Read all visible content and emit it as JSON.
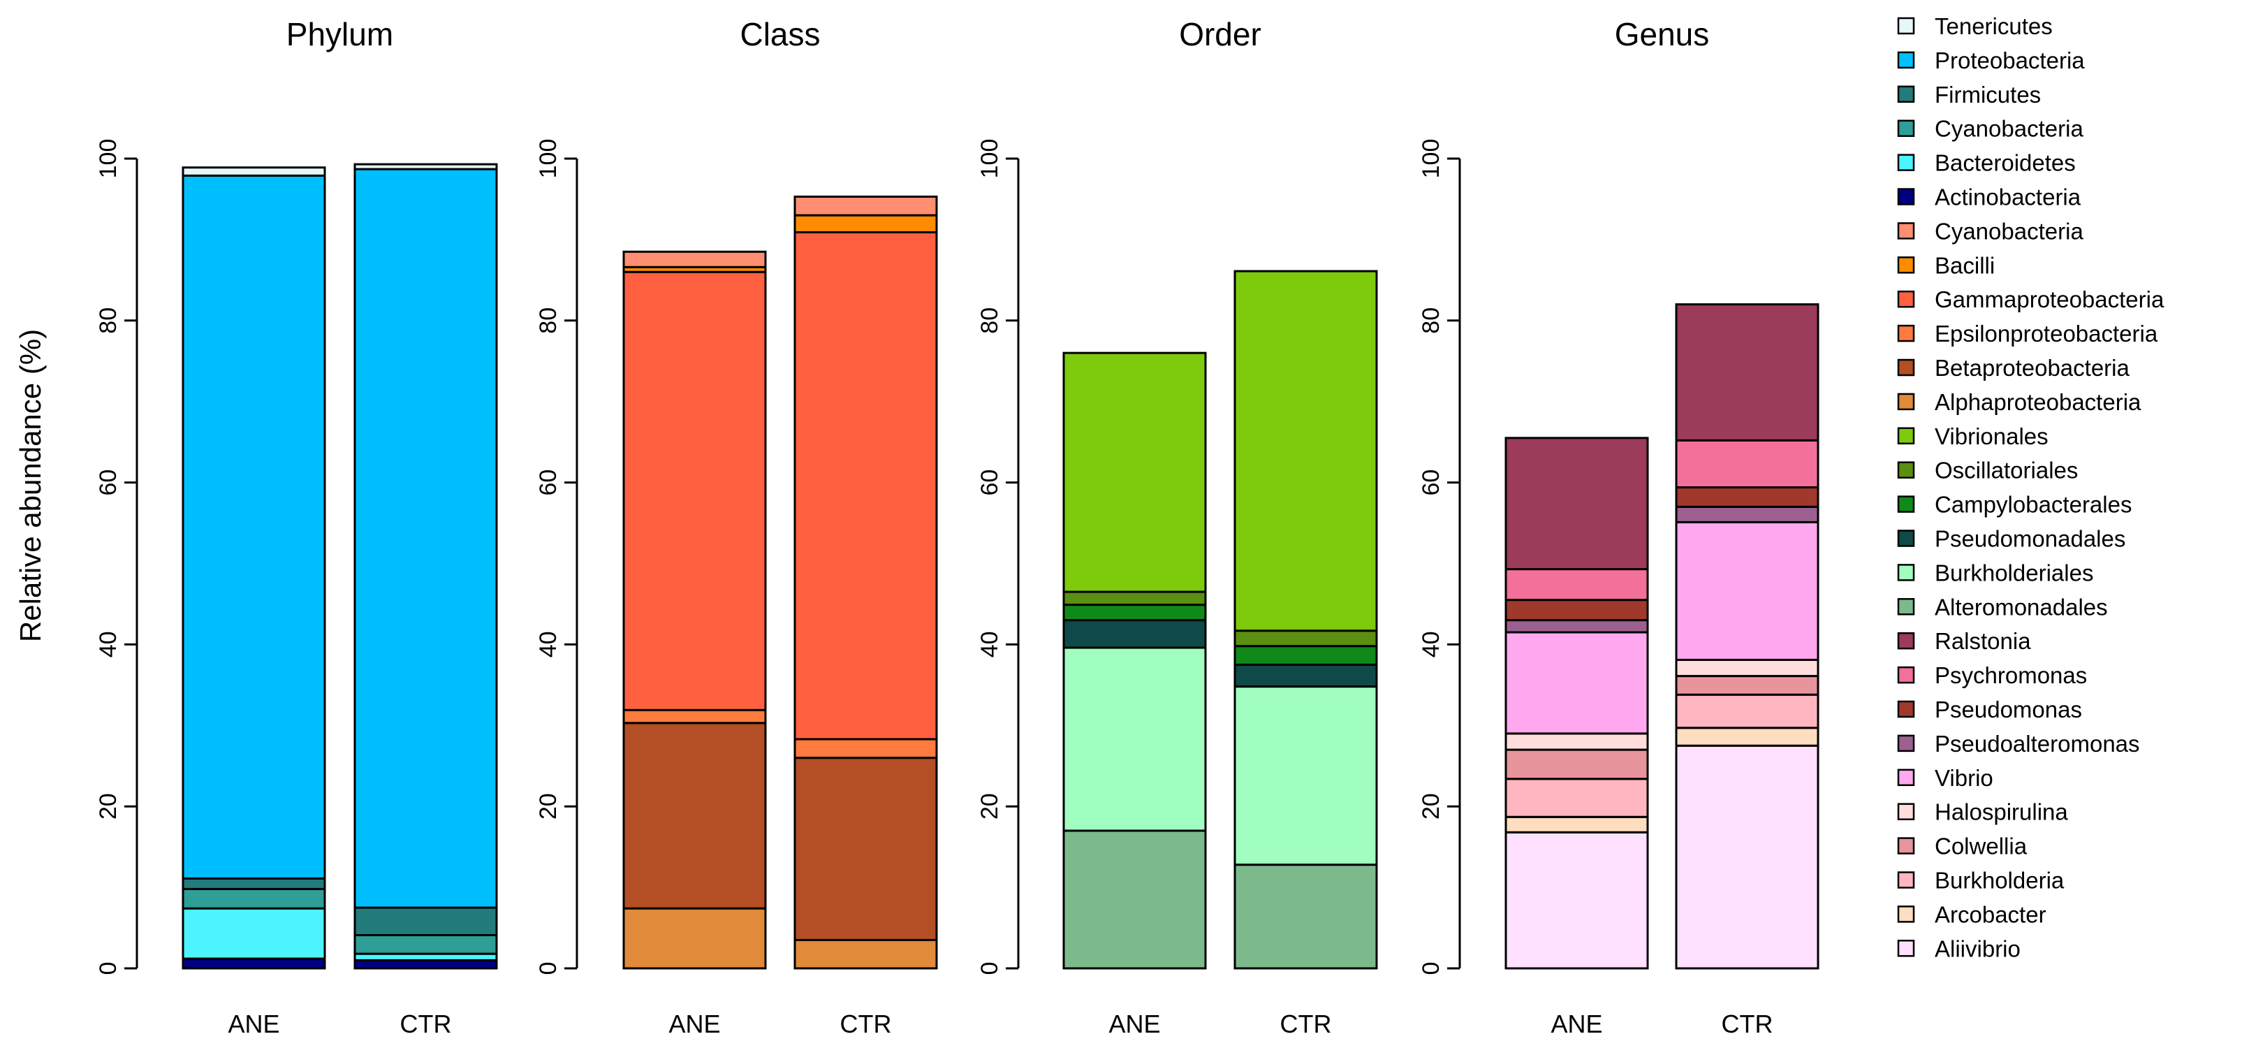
{
  "chart_data": [
    {
      "type": "bar",
      "stacked": true,
      "title": "Phylum",
      "xlabel": "",
      "ylabel": "Relative abundance (%)",
      "ylim": [
        0,
        100
      ],
      "yticks": [
        "0",
        "20",
        "40",
        "60",
        "80",
        "100"
      ],
      "categories": [
        "ANE",
        "CTR"
      ],
      "series": [
        {
          "name": "Actinobacteria",
          "color": "#000080",
          "values": [
            1.2,
            1.0
          ]
        },
        {
          "name": "Bacteroidetes",
          "color": "#4DF3FF",
          "values": [
            6.2,
            0.8
          ]
        },
        {
          "name": "Cyanobacteria",
          "color": "#2E9E97",
          "values": [
            2.4,
            2.3
          ]
        },
        {
          "name": "Firmicutes",
          "color": "#237B7B",
          "values": [
            1.3,
            3.4
          ]
        },
        {
          "name": "Proteobacteria",
          "color": "#00BFFF",
          "values": [
            86.8,
            91.2
          ]
        },
        {
          "name": "Tenericutes",
          "color": "#E6F7FA",
          "values": [
            1.0,
            0.6
          ]
        }
      ]
    },
    {
      "type": "bar",
      "stacked": true,
      "title": "Class",
      "xlabel": "",
      "ylabel": "",
      "ylim": [
        0,
        100
      ],
      "yticks": [
        "0",
        "20",
        "40",
        "60",
        "80",
        "100"
      ],
      "categories": [
        "ANE",
        "CTR"
      ],
      "series": [
        {
          "name": "Alphaproteobacteria",
          "color": "#E08A3A",
          "values": [
            7.4,
            3.5
          ]
        },
        {
          "name": "Betaproteobacteria",
          "color": "#B34E25",
          "values": [
            22.9,
            22.5
          ]
        },
        {
          "name": "Epsilonproteobacteria",
          "color": "#FF7A3D",
          "values": [
            1.6,
            2.3
          ]
        },
        {
          "name": "Gammaproteobacteria",
          "color": "#FF6040",
          "values": [
            54.1,
            62.6
          ]
        },
        {
          "name": "Bacilli",
          "color": "#FF8C00",
          "values": [
            0.6,
            2.1
          ]
        },
        {
          "name": "Cyanobacteria",
          "color": "#FF8F70",
          "values": [
            1.9,
            2.3
          ]
        }
      ]
    },
    {
      "type": "bar",
      "stacked": true,
      "title": "Order",
      "xlabel": "",
      "ylabel": "",
      "ylim": [
        0,
        100
      ],
      "yticks": [
        "0",
        "20",
        "40",
        "60",
        "80",
        "100"
      ],
      "categories": [
        "ANE",
        "CTR"
      ],
      "series": [
        {
          "name": "Alteromonadales",
          "color": "#7CBA8C",
          "values": [
            17.0,
            12.8
          ]
        },
        {
          "name": "Burkholderiales",
          "color": "#A0FFC0",
          "values": [
            22.6,
            22.0
          ]
        },
        {
          "name": "Pseudomonadales",
          "color": "#0F4A48",
          "values": [
            3.4,
            2.7
          ]
        },
        {
          "name": "Campylobacterales",
          "color": "#0F8A1A",
          "values": [
            1.9,
            2.3
          ]
        },
        {
          "name": "Oscillatoriales",
          "color": "#5A8F10",
          "values": [
            1.6,
            1.9
          ]
        },
        {
          "name": "Vibrionales",
          "color": "#7DCB0C",
          "values": [
            29.5,
            44.4
          ]
        }
      ]
    },
    {
      "type": "bar",
      "stacked": true,
      "title": "Genus",
      "xlabel": "",
      "ylabel": "",
      "ylim": [
        0,
        100
      ],
      "yticks": [
        "0",
        "20",
        "40",
        "60",
        "80",
        "100"
      ],
      "categories": [
        "ANE",
        "CTR"
      ],
      "series": [
        {
          "name": "Aliivibrio",
          "color": "#FFE0FF",
          "values": [
            16.8,
            27.5
          ]
        },
        {
          "name": "Arcobacter",
          "color": "#FFDDC0",
          "values": [
            1.9,
            2.2
          ]
        },
        {
          "name": "Burkholderia",
          "color": "#FFB6C1",
          "values": [
            4.7,
            4.1
          ]
        },
        {
          "name": "Colwellia",
          "color": "#E8949C",
          "values": [
            3.6,
            2.3
          ]
        },
        {
          "name": "Halospirulina",
          "color": "#FFDDDD",
          "values": [
            2.0,
            2.0
          ]
        },
        {
          "name": "Vibrio",
          "color": "#FFA8EF",
          "values": [
            12.5,
            17.0
          ]
        },
        {
          "name": "Pseudoalteromonas",
          "color": "#9C6090",
          "values": [
            1.5,
            1.9
          ]
        },
        {
          "name": "Pseudomonas",
          "color": "#A0392C",
          "values": [
            2.5,
            2.4
          ]
        },
        {
          "name": "Psychromonas",
          "color": "#F27099",
          "values": [
            3.8,
            5.8
          ]
        },
        {
          "name": "Ralstonia",
          "color": "#9C3B5A",
          "values": [
            16.2,
            16.8
          ]
        }
      ]
    }
  ],
  "legend": {
    "entries": [
      {
        "label": "Tenericutes",
        "color": "#E6F7FA"
      },
      {
        "label": "Proteobacteria",
        "color": "#00BFFF"
      },
      {
        "label": "Firmicutes",
        "color": "#237B7B"
      },
      {
        "label": "Cyanobacteria",
        "color": "#2E9E97"
      },
      {
        "label": "Bacteroidetes",
        "color": "#4DF3FF"
      },
      {
        "label": "Actinobacteria",
        "color": "#000080"
      },
      {
        "label": "Cyanobacteria",
        "color": "#FF8F70"
      },
      {
        "label": "Bacilli",
        "color": "#FF8C00"
      },
      {
        "label": "Gammaproteobacteria",
        "color": "#FF6040"
      },
      {
        "label": "Epsilonproteobacteria",
        "color": "#FF7A3D"
      },
      {
        "label": "Betaproteobacteria",
        "color": "#B34E25"
      },
      {
        "label": "Alphaproteobacteria",
        "color": "#E08A3A"
      },
      {
        "label": "Vibrionales",
        "color": "#7DCB0C"
      },
      {
        "label": "Oscillatoriales",
        "color": "#5A8F10"
      },
      {
        "label": "Campylobacterales",
        "color": "#0F8A1A"
      },
      {
        "label": "Pseudomonadales",
        "color": "#0F4A48"
      },
      {
        "label": "Burkholderiales",
        "color": "#A0FFC0"
      },
      {
        "label": "Alteromonadales",
        "color": "#7CBA8C"
      },
      {
        "label": "Ralstonia",
        "color": "#9C3B5A"
      },
      {
        "label": "Psychromonas",
        "color": "#F27099"
      },
      {
        "label": "Pseudomonas",
        "color": "#A0392C"
      },
      {
        "label": "Pseudoalteromonas",
        "color": "#9C6090"
      },
      {
        "label": "Vibrio",
        "color": "#FFA8EF"
      },
      {
        "label": "Halospirulina",
        "color": "#FFDDDD"
      },
      {
        "label": "Colwellia",
        "color": "#E8949C"
      },
      {
        "label": "Burkholderia",
        "color": "#FFB6C1"
      },
      {
        "label": "Arcobacter",
        "color": "#FFDDC0"
      },
      {
        "label": "Aliivibrio",
        "color": "#FFE0FF"
      }
    ]
  }
}
